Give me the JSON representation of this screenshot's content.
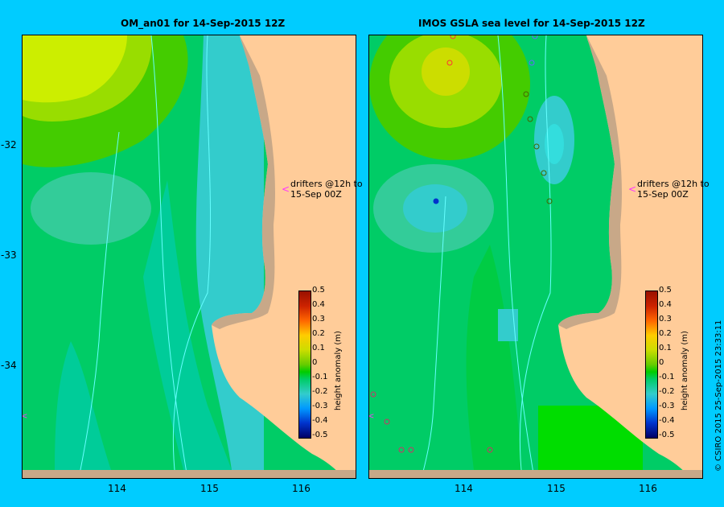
{
  "panels": [
    {
      "title": "OM_an01  for 14-Sep-2015 12Z"
    },
    {
      "title": "IMOS  GSLA sea level   for 14-Sep-2015 12Z"
    }
  ],
  "lat_ticks": [
    "-32",
    "-33",
    "-34"
  ],
  "lon_ticks": [
    "114",
    "115",
    "116"
  ],
  "annotation": {
    "line1": "drifters @12h to",
    "line2": "15-Sep 00Z",
    "marker_color": "#ff33ff"
  },
  "colorbar": {
    "title": "height anomaly (m)",
    "ticks": [
      "0.5",
      "0.4",
      "0.3",
      "0.2",
      "0.1",
      "0",
      "-0.1",
      "-0.2",
      "-0.3",
      "-0.4",
      "-0.5"
    ],
    "colors": [
      "#000066",
      "#0033cc",
      "#0099ff",
      "#33cccc",
      "#00cc66",
      "#00cc00",
      "#66cc00",
      "#ccdd00",
      "#ffcc00",
      "#ff6600",
      "#cc2200",
      "#991100"
    ]
  },
  "colors": {
    "land": "#ffcc99",
    "coast_shelf": "#c8a888",
    "background": "#00ccff"
  },
  "credit": "© CSIRO 2015   25-Sep-2015 23:33:11"
}
